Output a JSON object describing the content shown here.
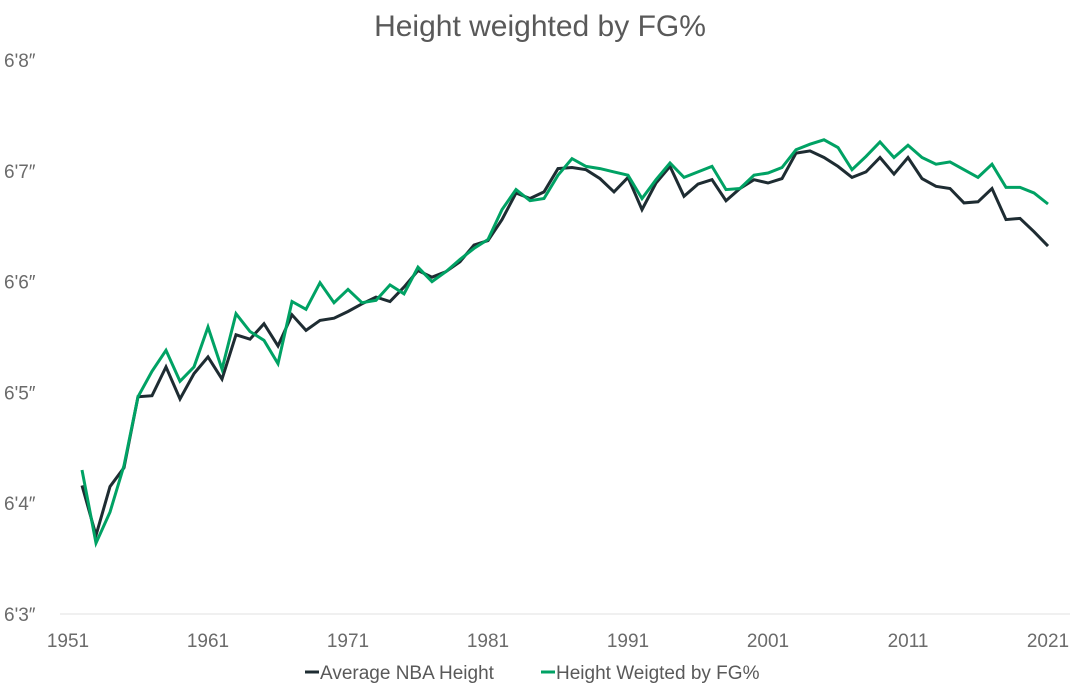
{
  "chart_data": {
    "type": "line",
    "title": "Height weighted by FG%",
    "xlabel": "",
    "ylabel": "",
    "y_units": "inches",
    "ylim": [
      75,
      80
    ],
    "xlim": [
      1951,
      2021
    ],
    "y_ticks": [
      {
        "value": 75,
        "label": "6'3″"
      },
      {
        "value": 76,
        "label": "6'4″"
      },
      {
        "value": 77,
        "label": "6'5″"
      },
      {
        "value": 78,
        "label": "6'6″"
      },
      {
        "value": 79,
        "label": "6'7″"
      },
      {
        "value": 80,
        "label": "6'8″"
      }
    ],
    "x_ticks": [
      "1951",
      "1961",
      "1971",
      "1981",
      "1991",
      "2001",
      "2011",
      "2021"
    ],
    "grid": false,
    "legend_position": "bottom",
    "x": [
      1952,
      1953,
      1954,
      1955,
      1956,
      1957,
      1958,
      1959,
      1960,
      1961,
      1962,
      1963,
      1964,
      1965,
      1966,
      1967,
      1968,
      1969,
      1970,
      1971,
      1972,
      1973,
      1974,
      1975,
      1976,
      1977,
      1978,
      1979,
      1980,
      1981,
      1982,
      1983,
      1984,
      1985,
      1986,
      1987,
      1988,
      1989,
      1990,
      1991,
      1992,
      1993,
      1994,
      1995,
      1996,
      1997,
      1998,
      1999,
      2000,
      2001,
      2002,
      2003,
      2004,
      2005,
      2006,
      2007,
      2008,
      2009,
      2010,
      2011,
      2012,
      2013,
      2014,
      2015,
      2016,
      2017,
      2018,
      2019,
      2020,
      2021
    ],
    "series": [
      {
        "name": "Average NBA Height",
        "color": "#1e2c32",
        "values": [
          76.16,
          75.71,
          76.15,
          76.32,
          76.96,
          76.97,
          77.23,
          76.94,
          77.17,
          77.32,
          77.12,
          77.52,
          77.48,
          77.62,
          77.42,
          77.7,
          77.56,
          77.65,
          77.67,
          77.73,
          77.8,
          77.86,
          77.82,
          77.95,
          78.1,
          78.04,
          78.09,
          78.18,
          78.33,
          78.37,
          78.56,
          78.8,
          78.75,
          78.81,
          79.02,
          79.03,
          79.01,
          78.93,
          78.81,
          78.94,
          78.65,
          78.89,
          79.04,
          78.77,
          78.88,
          78.92,
          78.73,
          78.84,
          78.92,
          78.89,
          78.93,
          79.16,
          79.18,
          79.12,
          79.04,
          78.94,
          78.99,
          79.12,
          78.97,
          79.12,
          78.93,
          78.86,
          78.84,
          78.71,
          78.72,
          78.84,
          78.56,
          78.57,
          78.45,
          78.32
        ]
      },
      {
        "name": "Height Weigted by FG%",
        "color": "#00a264",
        "values": [
          76.3,
          75.64,
          75.92,
          76.34,
          76.96,
          77.19,
          77.38,
          77.1,
          77.23,
          77.59,
          77.21,
          77.71,
          77.55,
          77.47,
          77.26,
          77.82,
          77.75,
          77.99,
          77.81,
          77.93,
          77.81,
          77.83,
          77.97,
          77.89,
          78.13,
          78.0,
          78.09,
          78.2,
          78.3,
          78.38,
          78.65,
          78.83,
          78.73,
          78.75,
          78.96,
          79.11,
          79.04,
          79.02,
          78.99,
          78.96,
          78.75,
          78.92,
          79.07,
          78.94,
          78.99,
          79.04,
          78.83,
          78.84,
          78.96,
          78.98,
          79.03,
          79.19,
          79.24,
          79.28,
          79.21,
          79.01,
          79.13,
          79.26,
          79.12,
          79.23,
          79.12,
          79.06,
          79.08,
          79.01,
          78.94,
          79.06,
          78.85,
          78.85,
          78.8,
          78.7
        ]
      }
    ],
    "axis_color": "#e0e0e0"
  }
}
